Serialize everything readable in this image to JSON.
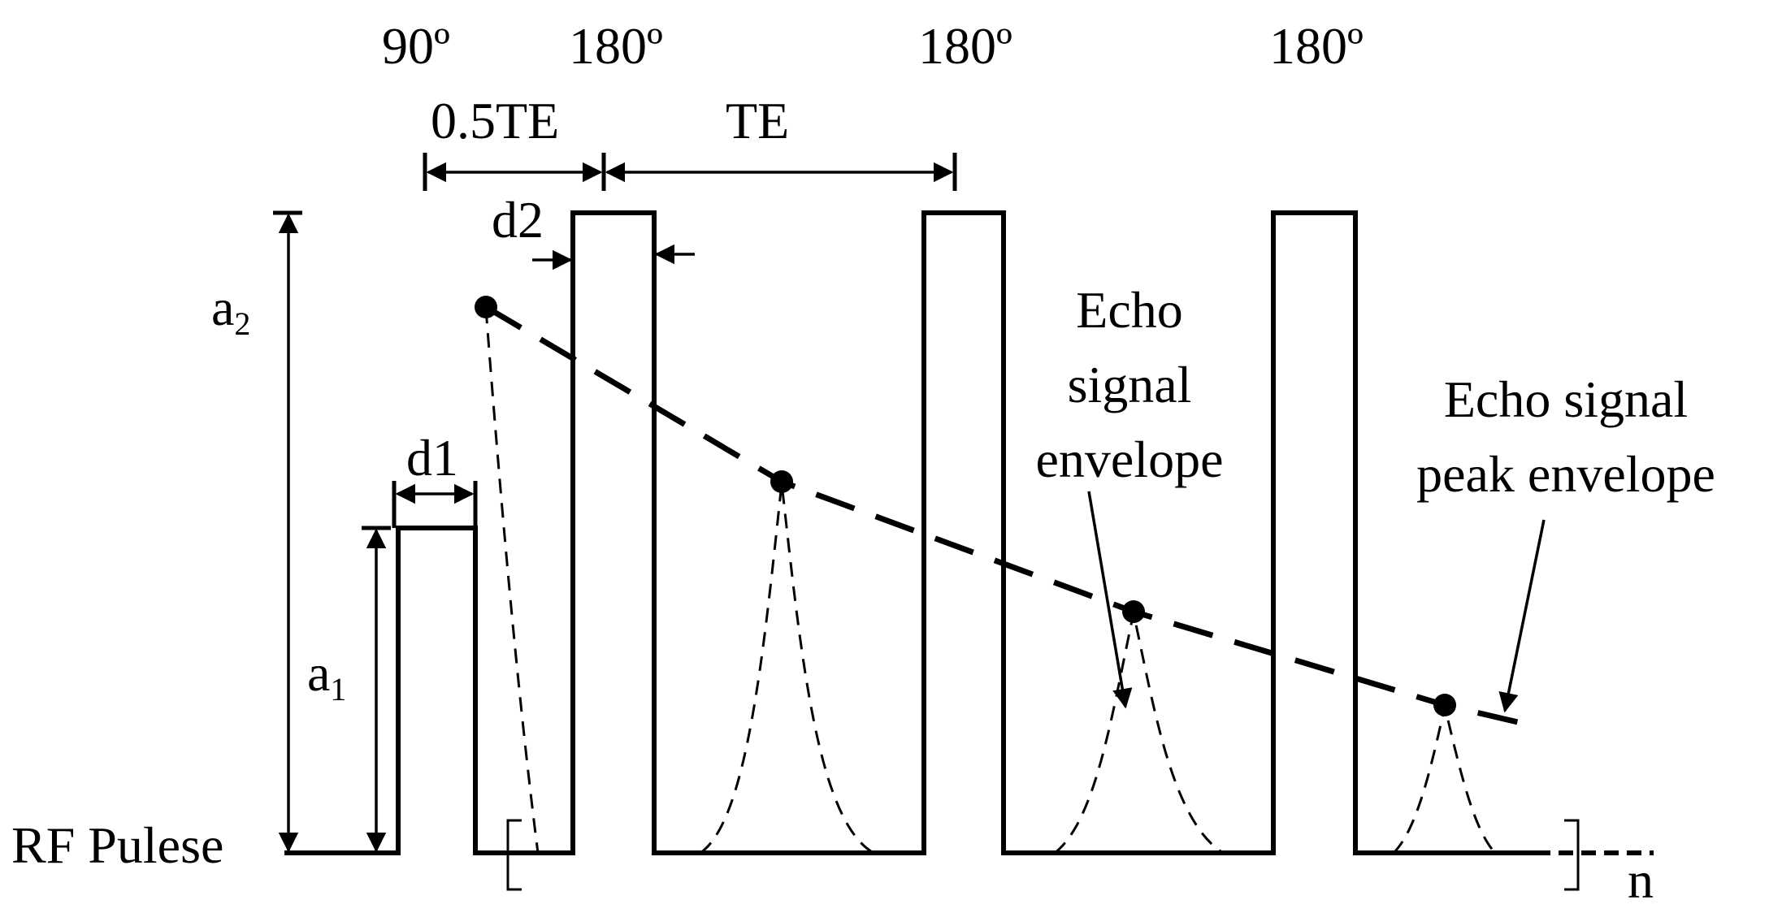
{
  "pulses": {
    "first_angle": "90º",
    "refocus_angle_1": "180º",
    "refocus_angle_2": "180º",
    "refocus_angle_3": "180º"
  },
  "intervals": {
    "half_te": "0.5TE",
    "te": "TE"
  },
  "dimensions": {
    "d1": "d1",
    "d2": "d2",
    "a1_main": "a",
    "a1_sub": "1",
    "a2_main": "a",
    "a2_sub": "2"
  },
  "annotations": {
    "echo_signal_envelope_line1": "Echo",
    "echo_signal_envelope_line2": "signal",
    "echo_signal_envelope_line3": "envelope",
    "peak_envelope_line1": "Echo signal",
    "peak_envelope_line2": "peak envelope"
  },
  "axis": {
    "baseline_label": "RF Pulese",
    "repeat_label": "n"
  }
}
